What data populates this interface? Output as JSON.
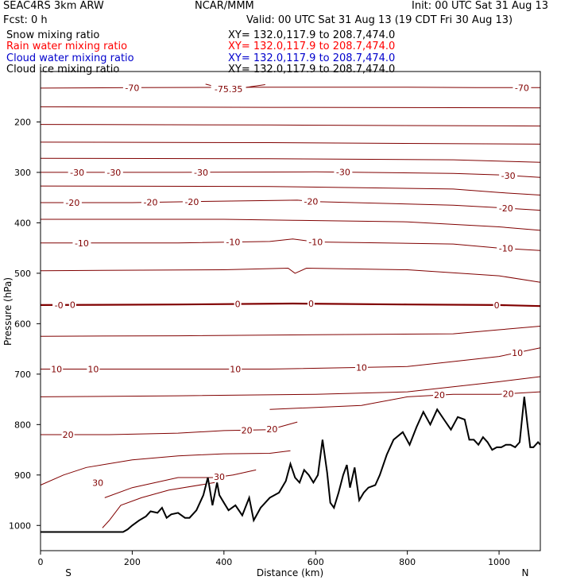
{
  "header": {
    "model": "SEAC4RS  3km ARW",
    "center": "NCAR/MMM",
    "init": "Init: 00 UTC Sat 31 Aug 13",
    "fcst": "Fcst:    0 h",
    "valid": "Valid: 00 UTC Sat 31 Aug 13 (19 CDT Fri 30 Aug 13)"
  },
  "fields": [
    {
      "name": "Snow mixing ratio",
      "xy": "XY= 132.0,117.9 to 208.7,474.0",
      "color": "#000000"
    },
    {
      "name": "Rain water mixing ratio",
      "xy": "XY= 132.0,117.9 to 208.7,474.0",
      "color": "#ff0000"
    },
    {
      "name": "Cloud water mixing ratio",
      "xy": "XY= 132.0,117.9 to 208.7,474.0",
      "color": "#0000cc"
    },
    {
      "name": "Cloud ice mixing ratio",
      "xy": "XY= 132.0,117.9 to 208.7,474.0",
      "color": "#000000"
    }
  ],
  "chart_data": {
    "type": "line",
    "title": "",
    "xlabel": "Distance (km)",
    "ylabel": "Pressure (hPa)",
    "xlim": [
      0,
      1090
    ],
    "ylim": [
      1050,
      100
    ],
    "x_ticks": [
      0,
      200,
      400,
      600,
      800,
      1000
    ],
    "y_ticks": [
      200,
      300,
      400,
      500,
      600,
      700,
      800,
      900,
      1000
    ],
    "endpoint_labels": {
      "left": "S",
      "right": "N"
    },
    "contour_color": "#800000",
    "terrain_color": "#000000",
    "contour_labels": [
      "-75.35",
      "-70",
      "-70",
      "-30",
      "-30",
      "-30",
      "-30",
      "-30",
      "-20",
      "-20",
      "-20",
      "-20",
      "-20",
      "-10",
      "-10",
      "-10",
      "-10",
      "-0",
      "0",
      "0",
      "0",
      "0",
      "10",
      "10",
      "10",
      "10",
      "10",
      "20",
      "20",
      "20",
      "20",
      "20",
      "30",
      "30"
    ],
    "terrain": {
      "x": [
        0,
        180,
        190,
        200,
        215,
        230,
        240,
        255,
        265,
        275,
        285,
        300,
        315,
        325,
        340,
        355,
        365,
        375,
        385,
        390,
        400,
        410,
        425,
        440,
        455,
        465,
        480,
        500,
        520,
        535,
        545,
        555,
        565,
        575,
        585,
        595,
        605,
        615,
        625,
        632,
        640,
        650,
        660,
        668,
        675,
        685,
        695,
        705,
        715,
        730,
        740,
        755,
        770,
        790,
        805,
        820,
        835,
        850,
        865,
        880,
        895,
        910,
        925,
        935,
        945,
        955,
        965,
        975,
        985,
        995,
        1005,
        1015,
        1025,
        1035,
        1045,
        1055,
        1062,
        1068,
        1075,
        1085,
        1090
      ],
      "pressure": [
        1013,
        1013,
        1008,
        1000,
        990,
        982,
        972,
        975,
        965,
        985,
        978,
        975,
        985,
        985,
        970,
        940,
        905,
        960,
        915,
        940,
        955,
        970,
        960,
        980,
        945,
        990,
        965,
        945,
        935,
        912,
        878,
        905,
        915,
        890,
        900,
        915,
        900,
        830,
        895,
        955,
        965,
        935,
        900,
        880,
        925,
        885,
        950,
        935,
        925,
        920,
        900,
        860,
        830,
        815,
        840,
        805,
        775,
        800,
        770,
        790,
        810,
        785,
        790,
        830,
        830,
        840,
        825,
        835,
        850,
        845,
        845,
        840,
        840,
        845,
        835,
        745,
        800,
        845,
        845,
        835,
        840
      ]
    },
    "contours": [
      {
        "level": "-75.35",
        "labels": [
          {
            "x": 410,
            "text": "-75.35"
          }
        ],
        "points": [
          [
            360,
            125
          ],
          [
            390,
            132
          ],
          [
            420,
            136
          ],
          [
            460,
            130
          ],
          [
            490,
            126
          ]
        ]
      },
      {
        "level": "-70",
        "labels": [
          {
            "x": 200,
            "text": "-70"
          },
          {
            "x": 1050,
            "text": "-70"
          }
        ],
        "points": [
          [
            0,
            133
          ],
          [
            200,
            132
          ],
          [
            500,
            131
          ],
          [
            800,
            131
          ],
          [
            950,
            132
          ],
          [
            1090,
            132
          ]
        ]
      },
      {
        "level": "a1",
        "labels": [],
        "points": [
          [
            0,
            170
          ],
          [
            500,
            171
          ],
          [
            1090,
            172
          ]
        ]
      },
      {
        "level": "a2",
        "labels": [],
        "points": [
          [
            0,
            205
          ],
          [
            500,
            206
          ],
          [
            1090,
            208
          ]
        ]
      },
      {
        "level": "a3",
        "labels": [],
        "points": [
          [
            0,
            240
          ],
          [
            500,
            241
          ],
          [
            1090,
            244
          ]
        ]
      },
      {
        "level": "a4",
        "labels": [],
        "points": [
          [
            0,
            272
          ],
          [
            500,
            273
          ],
          [
            900,
            275
          ],
          [
            1090,
            280
          ]
        ]
      },
      {
        "level": "-30",
        "labels": [
          {
            "x": 80,
            "text": "-30"
          },
          {
            "x": 160,
            "text": "-30"
          },
          {
            "x": 350,
            "text": "-30"
          },
          {
            "x": 660,
            "text": "-30"
          },
          {
            "x": 1020,
            "text": "-30"
          }
        ],
        "points": [
          [
            0,
            300
          ],
          [
            300,
            300
          ],
          [
            600,
            299
          ],
          [
            900,
            302
          ],
          [
            1000,
            305
          ],
          [
            1090,
            310
          ]
        ]
      },
      {
        "level": "a5",
        "labels": [],
        "points": [
          [
            0,
            327
          ],
          [
            500,
            328
          ],
          [
            900,
            333
          ],
          [
            1000,
            340
          ],
          [
            1090,
            345
          ]
        ]
      },
      {
        "level": "-20",
        "labels": [
          {
            "x": 70,
            "text": "-20"
          },
          {
            "x": 240,
            "text": "-20"
          },
          {
            "x": 330,
            "text": "-20"
          },
          {
            "x": 590,
            "text": "-20"
          },
          {
            "x": 1015,
            "text": "-20"
          }
        ],
        "points": [
          [
            0,
            360
          ],
          [
            200,
            360
          ],
          [
            400,
            357
          ],
          [
            560,
            355
          ],
          [
            600,
            358
          ],
          [
            900,
            365
          ],
          [
            1000,
            370
          ],
          [
            1090,
            375
          ]
        ]
      },
      {
        "level": "a6",
        "labels": [],
        "points": [
          [
            0,
            393
          ],
          [
            400,
            393
          ],
          [
            550,
            395
          ],
          [
            800,
            398
          ],
          [
            1000,
            408
          ],
          [
            1090,
            415
          ]
        ]
      },
      {
        "level": "-10",
        "labels": [
          {
            "x": 90,
            "text": "-10"
          },
          {
            "x": 420,
            "text": "-10"
          },
          {
            "x": 600,
            "text": "-10"
          },
          {
            "x": 1015,
            "text": "-10"
          }
        ],
        "points": [
          [
            0,
            440
          ],
          [
            300,
            440
          ],
          [
            500,
            437
          ],
          [
            550,
            432
          ],
          [
            600,
            438
          ],
          [
            900,
            442
          ],
          [
            1000,
            450
          ],
          [
            1090,
            455
          ]
        ]
      },
      {
        "level": "a7",
        "labels": [],
        "points": [
          [
            0,
            495
          ],
          [
            400,
            493
          ],
          [
            540,
            490
          ],
          [
            555,
            500
          ],
          [
            580,
            490
          ],
          [
            800,
            493
          ],
          [
            1000,
            505
          ],
          [
            1090,
            518
          ]
        ]
      },
      {
        "level": "0",
        "labels": [
          {
            "x": 40,
            "text": "-0"
          },
          {
            "x": 70,
            "text": "0"
          },
          {
            "x": 430,
            "text": "0"
          },
          {
            "x": 590,
            "text": "0"
          },
          {
            "x": 995,
            "text": "0"
          }
        ],
        "thick": true,
        "points": [
          [
            0,
            563
          ],
          [
            300,
            562
          ],
          [
            550,
            560
          ],
          [
            800,
            562
          ],
          [
            1000,
            563
          ],
          [
            1090,
            565
          ]
        ]
      },
      {
        "level": "a8",
        "labels": [],
        "points": [
          [
            0,
            625
          ],
          [
            300,
            624
          ],
          [
            600,
            622
          ],
          [
            900,
            620
          ],
          [
            1000,
            612
          ],
          [
            1090,
            605
          ]
        ]
      },
      {
        "level": "10",
        "labels": [
          {
            "x": 35,
            "text": "10"
          },
          {
            "x": 115,
            "text": "10"
          },
          {
            "x": 425,
            "text": "10"
          },
          {
            "x": 700,
            "text": "10"
          },
          {
            "x": 1040,
            "text": "10"
          }
        ],
        "points": [
          [
            0,
            690
          ],
          [
            200,
            690
          ],
          [
            500,
            690
          ],
          [
            800,
            685
          ],
          [
            900,
            675
          ],
          [
            1000,
            665
          ],
          [
            1090,
            648
          ]
        ]
      },
      {
        "level": "a9",
        "labels": [],
        "points": [
          [
            0,
            745
          ],
          [
            300,
            743
          ],
          [
            600,
            740
          ],
          [
            800,
            735
          ],
          [
            1000,
            715
          ],
          [
            1090,
            705
          ]
        ]
      },
      {
        "level": "20a",
        "labels": [
          {
            "x": 870,
            "text": "20"
          },
          {
            "x": 1020,
            "text": "20"
          }
        ],
        "points": [
          [
            500,
            770
          ],
          [
            700,
            762
          ],
          [
            800,
            745
          ],
          [
            900,
            740
          ],
          [
            1000,
            740
          ],
          [
            1090,
            735
          ]
        ]
      },
      {
        "level": "20",
        "labels": [
          {
            "x": 60,
            "text": "20"
          },
          {
            "x": 450,
            "text": "20"
          },
          {
            "x": 505,
            "text": "20"
          }
        ],
        "points": [
          [
            0,
            820
          ],
          [
            150,
            820
          ],
          [
            300,
            817
          ],
          [
            400,
            812
          ],
          [
            500,
            810
          ],
          [
            560,
            795
          ]
        ]
      },
      {
        "level": "a10",
        "labels": [],
        "points": [
          [
            0,
            920
          ],
          [
            50,
            900
          ],
          [
            100,
            885
          ],
          [
            200,
            870
          ],
          [
            300,
            862
          ],
          [
            400,
            858
          ],
          [
            500,
            857
          ],
          [
            545,
            852
          ]
        ]
      },
      {
        "level": "30",
        "labels": [
          {
            "x": 390,
            "text": "30"
          }
        ],
        "points": [
          [
            140,
            945
          ],
          [
            200,
            925
          ],
          [
            300,
            905
          ],
          [
            380,
            905
          ],
          [
            420,
            900
          ],
          [
            470,
            890
          ]
        ]
      },
      {
        "level": "30b",
        "labels": [
          {
            "x": 125,
            "text": "30"
          }
        ],
        "points": [
          [
            135,
            1005
          ],
          [
            150,
            990
          ],
          [
            175,
            960
          ],
          [
            220,
            945
          ],
          [
            280,
            930
          ],
          [
            380,
            915
          ]
        ]
      }
    ]
  }
}
